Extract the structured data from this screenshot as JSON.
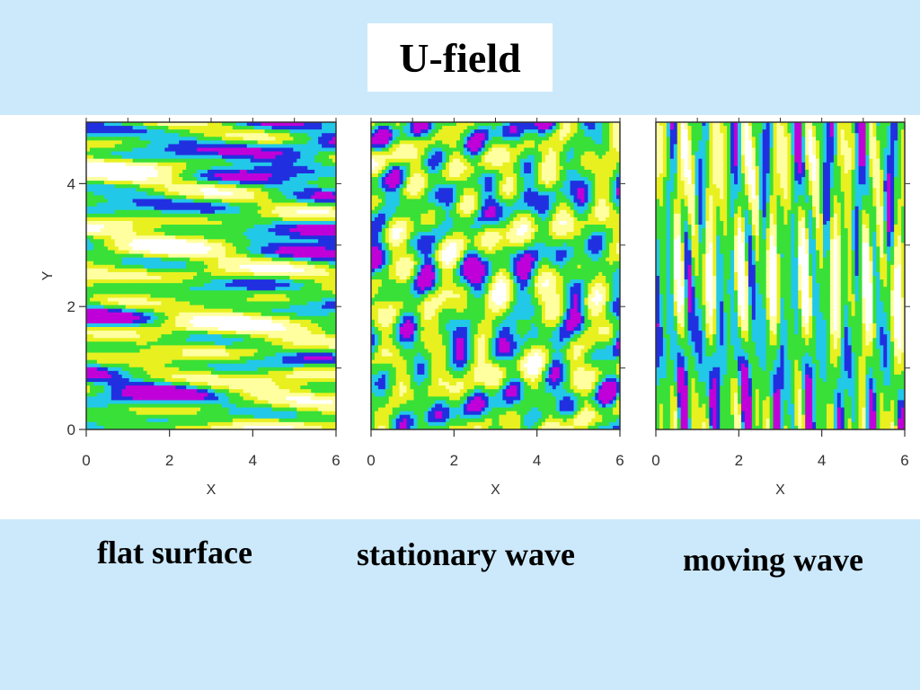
{
  "title": "U-field",
  "captions": [
    "flat surface",
    "stationary wave",
    "moving wave"
  ],
  "colors": {
    "background": "#cce9fb",
    "panel_background": "#ffffff",
    "colormap": [
      "#ffffff",
      "#ffffa0",
      "#e8f020",
      "#38e038",
      "#22c8e8",
      "#2030e0",
      "#c000d8"
    ]
  },
  "chart_data": [
    {
      "type": "heatmap",
      "title": "",
      "xlabel": "X",
      "ylabel": "Y",
      "xlim": [
        0,
        6
      ],
      "ylim": [
        0,
        5
      ],
      "xticks": [
        "0",
        "2",
        "4",
        "6"
      ],
      "yticks": [
        "0",
        "2",
        "4"
      ],
      "pattern": "horizontal streaks"
    },
    {
      "type": "heatmap",
      "title": "",
      "xlabel": "X",
      "ylabel": "",
      "xlim": [
        0,
        6
      ],
      "ylim": [
        0,
        5
      ],
      "xticks": [
        "0",
        "2",
        "4",
        "6"
      ],
      "yticks": [],
      "pattern": "isotropic patches"
    },
    {
      "type": "heatmap",
      "title": "",
      "xlabel": "X",
      "ylabel": "",
      "xlim": [
        0,
        6
      ],
      "ylim": [
        0,
        5
      ],
      "xticks": [
        "0",
        "2",
        "4",
        "6"
      ],
      "yticks": [],
      "pattern": "vertical streaks"
    }
  ]
}
